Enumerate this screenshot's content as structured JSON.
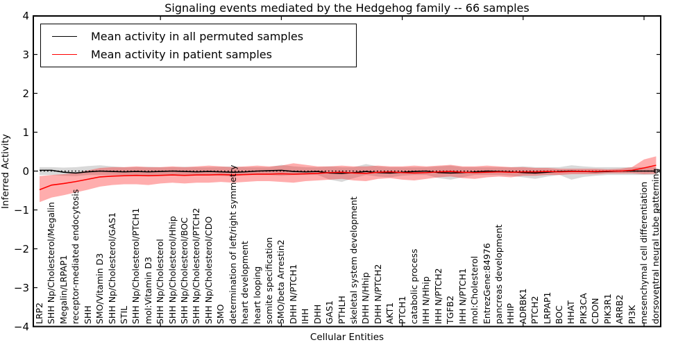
{
  "title": "Signaling events mediated by the Hedgehog family -- 66 samples",
  "axes": {
    "xlabel": "Cellular Entities",
    "ylabel": "Inferred Activity"
  },
  "legend": {
    "items": [
      {
        "label": "Mean activity in all permuted samples",
        "color": "#000000"
      },
      {
        "label": "Mean activity in patient samples",
        "color": "#ff0000"
      }
    ]
  },
  "chart_data": {
    "type": "line",
    "title": "Signaling events mediated by the Hedgehog family -- 66 samples",
    "xlabel": "Cellular Entities",
    "ylabel": "Inferred Activity",
    "ylim": [
      -4,
      4
    ],
    "ytick_values": [
      4,
      3,
      2,
      1,
      0,
      -1,
      -2,
      -3,
      -4
    ],
    "ytick_labels": [
      "4",
      "3",
      "2",
      "1",
      "0",
      "−1",
      "−2",
      "−3",
      "−4"
    ],
    "xtick_major_indices": [
      10,
      20,
      30,
      40,
      50
    ],
    "grid": false,
    "zero_line": true,
    "legend_position": "upper left",
    "categories": [
      "LRP2",
      "SHH Np/Cholesterol/Megalin",
      "Megalin/LRPAP1",
      "receptor-mediated endocytosis",
      "SHH",
      "SMO/Vitamin D3",
      "SHH Np/Cholesterol/GAS1",
      "STIL",
      "SHH Np/Cholesterol/PTCH1",
      "mol:Vitamin D3",
      "SHH Np/Cholesterol",
      "SHH Np/Cholesterol/Hhip",
      "SHH Np/Cholesterol/BOC",
      "SHH Np/Cholesterol/PTCH2",
      "SHH Np/Cholesterol/CDO",
      "SMO",
      "determination of left/right symmetry",
      "heart development",
      "heart looping",
      "somite specification",
      "SMO/beta Arrestin2",
      "DHH N/PTCH1",
      "IHH",
      "DHH",
      "GAS1",
      "PTHLH",
      "skeletal system development",
      "DHH N/Hhip",
      "DHH N/PTCH2",
      "AKT1",
      "PTCH1",
      "catabolic process",
      "IHH N/Hhip",
      "IHH N/PTCH2",
      "TGFB2",
      "IHH N/PTCH1",
      "mol:Cholesterol",
      "EntrezGene:84976",
      "pancreas development",
      "HHIP",
      "ADRBK1",
      "PTCH2",
      "LRPAP1",
      "BOC",
      "HHAT",
      "PIK3CA",
      "CDON",
      "PIK3R1",
      "ARRB2",
      "PI3K",
      "mesenchymal cell differentiation",
      "dorsoventral neural tube patterning"
    ],
    "series": [
      {
        "name": "Mean activity in all permuted samples",
        "color": "#000000",
        "values": [
          0.02,
          0.02,
          -0.03,
          -0.05,
          -0.02,
          0,
          -0.01,
          -0.02,
          -0.01,
          -0.02,
          -0.01,
          0,
          -0.01,
          -0.02,
          -0.01,
          -0.02,
          -0.03,
          -0.02,
          0,
          0.01,
          0.02,
          -0.01,
          -0.02,
          -0.01,
          -0.05,
          -0.06,
          -0.04,
          -0.01,
          -0.04,
          -0.05,
          -0.03,
          -0.01,
          0,
          -0.04,
          -0.05,
          -0.04,
          -0.02,
          0,
          -0.01,
          -0.02,
          -0.04,
          -0.05,
          -0.03,
          -0.01,
          0,
          -0.01,
          -0.02,
          -0.01,
          0,
          0,
          0,
          0
        ]
      },
      {
        "name": "Mean activity in patient samples",
        "color": "#ff0000",
        "values": [
          -0.48,
          -0.36,
          -0.32,
          -0.27,
          -0.21,
          -0.15,
          -0.13,
          -0.12,
          -0.11,
          -0.12,
          -0.11,
          -0.1,
          -0.11,
          -0.1,
          -0.1,
          -0.09,
          -0.1,
          -0.09,
          -0.08,
          -0.08,
          -0.07,
          -0.08,
          -0.07,
          -0.06,
          -0.04,
          -0.03,
          -0.05,
          -0.06,
          -0.03,
          -0.02,
          -0.04,
          -0.05,
          -0.04,
          -0.02,
          -0.01,
          -0.03,
          -0.04,
          -0.03,
          -0.02,
          -0.03,
          -0.02,
          -0.02,
          -0.01,
          -0.02,
          -0.01,
          -0.01,
          -0.01,
          0,
          0,
          0.02,
          0.08,
          0.15
        ]
      }
    ],
    "bands": [
      {
        "name": "permuted samples range",
        "color": "rgba(128,128,128,0.30)",
        "upper": [
          0.1,
          0.1,
          0.09,
          0.1,
          0.13,
          0.15,
          0.12,
          0.1,
          0.1,
          0.11,
          0.1,
          0.1,
          0.11,
          0.1,
          0.1,
          0.11,
          0.12,
          0.1,
          0.1,
          0.1,
          0.16,
          0.12,
          0.1,
          0.1,
          0.12,
          0.1,
          0.1,
          0.18,
          0.12,
          0.1,
          0.1,
          0.1,
          0.1,
          0.12,
          0.14,
          0.1,
          0.1,
          0.1,
          0.1,
          0.1,
          0.12,
          0.1,
          0.1,
          0.1,
          0.15,
          0.12,
          0.1,
          0.1,
          0.1,
          0.1,
          0.1,
          0.1
        ],
        "lower": [
          -0.1,
          -0.1,
          -0.12,
          -0.13,
          -0.1,
          -0.1,
          -0.1,
          -0.1,
          -0.1,
          -0.12,
          -0.1,
          -0.1,
          -0.1,
          -0.11,
          -0.1,
          -0.12,
          -0.14,
          -0.1,
          -0.1,
          -0.1,
          -0.12,
          -0.1,
          -0.1,
          -0.1,
          -0.22,
          -0.28,
          -0.18,
          -0.1,
          -0.14,
          -0.16,
          -0.12,
          -0.1,
          -0.1,
          -0.18,
          -0.22,
          -0.16,
          -0.1,
          -0.1,
          -0.1,
          -0.12,
          -0.16,
          -0.2,
          -0.14,
          -0.1,
          -0.22,
          -0.15,
          -0.12,
          -0.1,
          -0.1,
          -0.1,
          -0.1,
          -0.1
        ]
      },
      {
        "name": "patient samples range",
        "color": "rgba(255,0,0,0.32)",
        "upper": [
          -0.13,
          -0.1,
          -0.08,
          -0.05,
          0.02,
          0.08,
          0.1,
          0.1,
          0.12,
          0.1,
          0.1,
          0.12,
          0.1,
          0.12,
          0.14,
          0.12,
          0.1,
          0.12,
          0.14,
          0.12,
          0.14,
          0.2,
          0.16,
          0.12,
          0.12,
          0.14,
          0.12,
          0.12,
          0.14,
          0.12,
          0.12,
          0.14,
          0.12,
          0.14,
          0.16,
          0.12,
          0.12,
          0.14,
          0.12,
          0.1,
          0.1,
          0.08,
          0.08,
          0.06,
          0.06,
          0.06,
          0.06,
          0.05,
          0.06,
          0.1,
          0.3,
          0.38
        ],
        "lower": [
          -0.8,
          -0.68,
          -0.62,
          -0.55,
          -0.48,
          -0.4,
          -0.36,
          -0.34,
          -0.34,
          -0.36,
          -0.32,
          -0.3,
          -0.32,
          -0.3,
          -0.3,
          -0.28,
          -0.3,
          -0.28,
          -0.26,
          -0.26,
          -0.28,
          -0.3,
          -0.26,
          -0.24,
          -0.22,
          -0.2,
          -0.24,
          -0.26,
          -0.2,
          -0.18,
          -0.22,
          -0.24,
          -0.2,
          -0.16,
          -0.14,
          -0.18,
          -0.2,
          -0.16,
          -0.14,
          -0.16,
          -0.12,
          -0.12,
          -0.1,
          -0.1,
          -0.08,
          -0.08,
          -0.08,
          -0.06,
          -0.06,
          -0.06,
          -0.08,
          -0.07
        ]
      }
    ]
  }
}
